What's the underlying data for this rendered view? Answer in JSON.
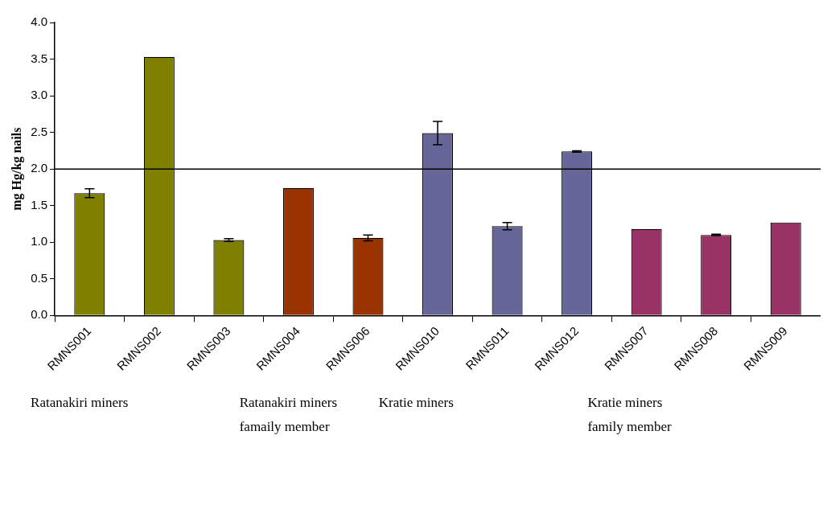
{
  "chart_data": {
    "type": "bar",
    "ylabel": "mg Hg/kg nails",
    "categories": [
      "RMNS001",
      "RMNS002",
      "RMNS003",
      "RMNS004",
      "RMNS006",
      "RMNS010",
      "RMNS011",
      "RMNS012",
      "RMNS007",
      "RMNS008",
      "RMNS009"
    ],
    "values": [
      1.67,
      3.53,
      1.03,
      1.74,
      1.06,
      2.49,
      1.22,
      2.24,
      1.18,
      1.1,
      1.27
    ],
    "colors": [
      "#808000",
      "#808000",
      "#808000",
      "#993300",
      "#993300",
      "#666699",
      "#666699",
      "#666699",
      "#993366",
      "#993366",
      "#993366"
    ],
    "errors": [
      0.06,
      null,
      0.02,
      null,
      0.04,
      0.16,
      0.05,
      0.01,
      null,
      0.01,
      null
    ],
    "ylim": [
      0,
      4
    ],
    "yticks": [
      {
        "value": 0,
        "label": "0.0"
      },
      {
        "value": 0.5,
        "label": "0.5"
      },
      {
        "value": 1,
        "label": "1.0"
      },
      {
        "value": 1.5,
        "label": "1.5"
      },
      {
        "value": 2,
        "label": "2.0"
      },
      {
        "value": 2.5,
        "label": "2.5"
      },
      {
        "value": 3,
        "label": "3.0"
      },
      {
        "value": 3.5,
        "label": "3.5"
      },
      {
        "value": 4,
        "label": "4.0"
      }
    ],
    "ref_lines": [
      {
        "axis": "y",
        "value": 2,
        "color": "#000000"
      }
    ],
    "annotations": [
      "Ratanakiri miners",
      "Ratanakiri miners\nfamaily member",
      "Kratie miners",
      "Kratie miners\nfamily member"
    ],
    "grid": false,
    "legend": false
  }
}
